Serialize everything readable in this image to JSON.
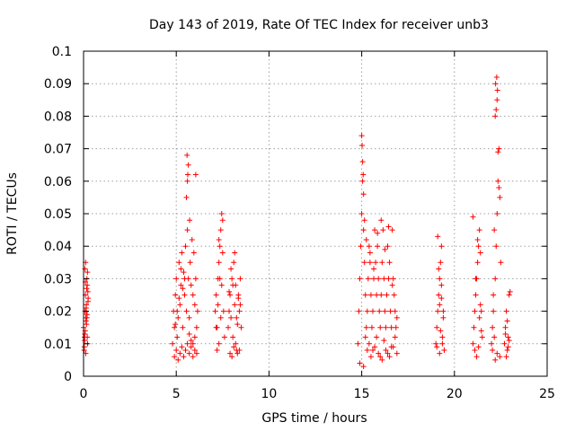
{
  "chart_data": {
    "type": "scatter",
    "title": "Day 143 of 2019, Rate Of TEC Index for receiver unb3",
    "xlabel": "GPS time / hours",
    "ylabel": "ROTI / TECUs",
    "xlim": [
      0,
      25
    ],
    "ylim": [
      0,
      0.1
    ],
    "x_ticks": [
      0,
      5,
      10,
      15,
      20,
      25
    ],
    "y_ticks": [
      0,
      0.01,
      0.02,
      0.03,
      0.04,
      0.05,
      0.06,
      0.07,
      0.08,
      0.09,
      0.1
    ],
    "x_tick_labels": [
      "0",
      "5",
      "10",
      "15",
      "20",
      "25"
    ],
    "y_tick_labels": [
      "0",
      "0.01",
      "0.02",
      "0.03",
      "0.04",
      "0.05",
      "0.06",
      "0.07",
      "0.08",
      "0.09",
      "0.1"
    ],
    "grid": true,
    "marker": "plus",
    "marker_color": "#ff0000",
    "series": [
      {
        "x": [
          0.0,
          0.05,
          0.08,
          0.1,
          0.12,
          0.15,
          0.18,
          0.2,
          0.22,
          0.25,
          0.03,
          0.07,
          0.11,
          0.16,
          0.19,
          0.23,
          0.06,
          0.14,
          0.21,
          0.09,
          0.17,
          0.04,
          0.13,
          0.24,
          0.1,
          0.15,
          0.2,
          0.08,
          0.12,
          0.18,
          4.8,
          4.85,
          4.9,
          4.95,
          5.0,
          5.05,
          5.1,
          5.15,
          5.2,
          5.25,
          5.3,
          5.35,
          5.4,
          5.45,
          5.5,
          5.55,
          5.6,
          5.65,
          5.7,
          5.75,
          5.8,
          5.85,
          5.9,
          5.95,
          6.0,
          6.05,
          6.1,
          6.15,
          4.9,
          5.0,
          5.1,
          5.2,
          5.3,
          5.4,
          5.5,
          5.6,
          5.7,
          5.8,
          5.9,
          6.0,
          6.1,
          5.55,
          5.6,
          5.65,
          5.58,
          5.62,
          5.72,
          6.05,
          5.45,
          5.35,
          5.25,
          5.15,
          5.05,
          4.95,
          5.7,
          5.8,
          5.9,
          6.0,
          7.1,
          7.15,
          7.2,
          7.25,
          7.3,
          7.35,
          7.4,
          7.45,
          7.5,
          7.55,
          7.6,
          7.2,
          7.3,
          7.4,
          7.35,
          7.45,
          7.25,
          7.15,
          7.5,
          7.3,
          7.8,
          7.85,
          7.9,
          7.95,
          8.0,
          8.05,
          8.1,
          8.15,
          8.2,
          8.25,
          8.3,
          8.35,
          8.4,
          8.45,
          8.5,
          7.9,
          8.0,
          8.1,
          8.2,
          8.3,
          8.4,
          7.95,
          8.15,
          8.35,
          8.05,
          8.25,
          7.85,
          8.45,
          14.8,
          14.85,
          14.9,
          14.95,
          15.0,
          15.05,
          15.1,
          15.15,
          15.2,
          15.25,
          15.3,
          15.35,
          15.4,
          15.45,
          15.5,
          15.55,
          15.6,
          15.65,
          15.7,
          15.75,
          15.8,
          15.85,
          15.9,
          15.95,
          16.0,
          16.05,
          16.1,
          16.15,
          16.2,
          16.25,
          16.3,
          16.35,
          16.4,
          16.45,
          16.5,
          16.55,
          16.6,
          16.65,
          16.7,
          16.75,
          16.8,
          16.85,
          16.9,
          15.0,
          15.05,
          15.1,
          15.02,
          15.08,
          15.15,
          15.2,
          15.3,
          15.5,
          15.7,
          15.9,
          16.1,
          16.3,
          16.5,
          16.7,
          16.9,
          14.9,
          15.1,
          15.4,
          15.6,
          15.8,
          16.0,
          16.2,
          16.4,
          16.6,
          16.8,
          15.25,
          15.45,
          15.65,
          15.85,
          16.05,
          16.25,
          16.45,
          16.65,
          19.0,
          19.05,
          19.1,
          19.15,
          19.2,
          19.25,
          19.3,
          19.35,
          19.4,
          19.45,
          19.1,
          19.2,
          19.3,
          19.15,
          19.25,
          19.35,
          19.05,
          19.4,
          19.2,
          19.3,
          21.0,
          21.05,
          21.1,
          21.15,
          21.2,
          21.25,
          21.3,
          21.35,
          21.4,
          21.45,
          21.5,
          21.1,
          21.2,
          21.3,
          21.4,
          21.0,
          21.15,
          21.35,
          21.25,
          21.45,
          22.0,
          22.05,
          22.1,
          22.15,
          22.2,
          22.25,
          22.3,
          22.35,
          22.4,
          22.45,
          22.5,
          22.2,
          22.25,
          22.3,
          22.22,
          22.28,
          22.32,
          22.35,
          22.4,
          22.15,
          22.1,
          22.05,
          22.45,
          22.3,
          22.2,
          22.7,
          22.75,
          22.8,
          22.85,
          22.9,
          22.95,
          23.0,
          22.8,
          22.9,
          22.75,
          22.85,
          22.95
        ],
        "y": [
          0.015,
          0.012,
          0.02,
          0.025,
          0.018,
          0.022,
          0.03,
          0.028,
          0.01,
          0.024,
          0.008,
          0.013,
          0.035,
          0.016,
          0.019,
          0.026,
          0.011,
          0.021,
          0.032,
          0.014,
          0.027,
          0.009,
          0.017,
          0.023,
          0.029,
          0.02,
          0.012,
          0.033,
          0.007,
          0.018,
          0.01,
          0.02,
          0.015,
          0.025,
          0.03,
          0.012,
          0.018,
          0.035,
          0.022,
          0.028,
          0.038,
          0.015,
          0.032,
          0.025,
          0.04,
          0.02,
          0.045,
          0.03,
          0.018,
          0.035,
          0.028,
          0.042,
          0.025,
          0.038,
          0.022,
          0.03,
          0.015,
          0.02,
          0.006,
          0.008,
          0.005,
          0.007,
          0.009,
          0.006,
          0.008,
          0.01,
          0.007,
          0.009,
          0.006,
          0.008,
          0.007,
          0.055,
          0.06,
          0.065,
          0.068,
          0.062,
          0.048,
          0.062,
          0.03,
          0.027,
          0.033,
          0.024,
          0.02,
          0.016,
          0.013,
          0.011,
          0.01,
          0.012,
          0.02,
          0.025,
          0.015,
          0.03,
          0.035,
          0.04,
          0.045,
          0.028,
          0.048,
          0.02,
          0.012,
          0.008,
          0.01,
          0.018,
          0.03,
          0.05,
          0.022,
          0.015,
          0.038,
          0.042,
          0.015,
          0.02,
          0.025,
          0.018,
          0.03,
          0.012,
          0.035,
          0.022,
          0.028,
          0.008,
          0.016,
          0.024,
          0.02,
          0.03,
          0.015,
          0.007,
          0.006,
          0.009,
          0.01,
          0.007,
          0.008,
          0.033,
          0.038,
          0.025,
          0.028,
          0.018,
          0.026,
          0.022,
          0.01,
          0.02,
          0.03,
          0.04,
          0.05,
          0.06,
          0.045,
          0.035,
          0.025,
          0.015,
          0.02,
          0.03,
          0.04,
          0.035,
          0.025,
          0.015,
          0.02,
          0.03,
          0.045,
          0.035,
          0.025,
          0.04,
          0.03,
          0.02,
          0.015,
          0.025,
          0.035,
          0.045,
          0.03,
          0.02,
          0.015,
          0.025,
          0.04,
          0.03,
          0.035,
          0.02,
          0.015,
          0.045,
          0.03,
          0.025,
          0.02,
          0.015,
          0.018,
          0.074,
          0.066,
          0.056,
          0.071,
          0.062,
          0.048,
          0.012,
          0.008,
          0.006,
          0.009,
          0.007,
          0.005,
          0.008,
          0.006,
          0.009,
          0.007,
          0.004,
          0.003,
          0.01,
          0.008,
          0.012,
          0.006,
          0.011,
          0.007,
          0.009,
          0.012,
          0.042,
          0.038,
          0.033,
          0.044,
          0.048,
          0.039,
          0.046,
          0.028,
          0.01,
          0.015,
          0.02,
          0.025,
          0.03,
          0.035,
          0.04,
          0.012,
          0.018,
          0.008,
          0.043,
          0.022,
          0.028,
          0.033,
          0.014,
          0.01,
          0.009,
          0.02,
          0.007,
          0.024,
          0.01,
          0.015,
          0.02,
          0.025,
          0.03,
          0.035,
          0.04,
          0.045,
          0.038,
          0.02,
          0.012,
          0.008,
          0.006,
          0.009,
          0.022,
          0.049,
          0.03,
          0.018,
          0.042,
          0.014,
          0.01,
          0.015,
          0.02,
          0.012,
          0.03,
          0.04,
          0.05,
          0.06,
          0.07,
          0.055,
          0.035,
          0.08,
          0.082,
          0.085,
          0.09,
          0.092,
          0.088,
          0.069,
          0.058,
          0.045,
          0.025,
          0.008,
          0.006,
          0.007,
          0.005,
          0.01,
          0.015,
          0.02,
          0.008,
          0.012,
          0.025,
          0.026,
          0.006,
          0.009,
          0.013,
          0.017,
          0.011
        ]
      }
    ]
  }
}
